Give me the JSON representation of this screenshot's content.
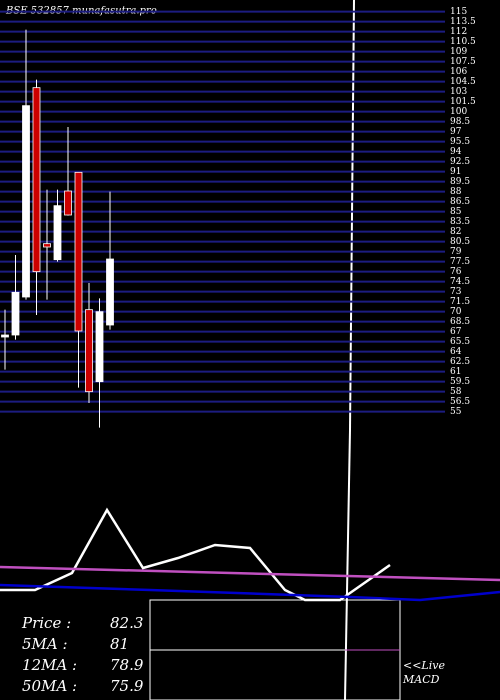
{
  "chart_data": [
    {
      "type": "candlestick",
      "title": "BSE 532857 munafasutra.pro",
      "ylim": [
        53,
        116
      ],
      "yticks": [
        55,
        56.5,
        58,
        59.5,
        61,
        62.5,
        64,
        65.5,
        67,
        68.5,
        70,
        71.5,
        73,
        74.5,
        76,
        77.5,
        79,
        80.5,
        82,
        83.5,
        85,
        86.5,
        88,
        89.5,
        91,
        92.5,
        94,
        95.5,
        97,
        98.5,
        100,
        101.5,
        103,
        104.5,
        106,
        107.5,
        109,
        110.5,
        112,
        113.5,
        115
      ],
      "grid": true,
      "grid_color": "#1c1c80",
      "up_color": "#ffffff",
      "down_color": "#cc0000",
      "open": [
        66.2,
        66.5,
        72.2,
        103.6,
        80.2,
        77.8,
        88.1,
        90.9,
        70.3,
        59.5,
        68.0
      ],
      "high": [
        70.3,
        78.5,
        112.3,
        104.8,
        88.3,
        88.3,
        97.7,
        90.9,
        74.3,
        72.0,
        88.0
      ],
      "low": [
        61.3,
        65.8,
        71.8,
        69.5,
        71.8,
        77.5,
        84.4,
        58.6,
        56.3,
        52.6,
        67.3
      ],
      "close": [
        66.5,
        72.9,
        100.9,
        76.0,
        79.7,
        85.9,
        84.5,
        67.1,
        58.0,
        70.0,
        77.9
      ],
      "indicators": [
        {
          "label": "Price   :",
          "value": 82.3
        },
        {
          "label": "5MA :",
          "value": 81
        },
        {
          "label": "12MA :",
          "value": 78.9
        },
        {
          "label": "50MA :",
          "value": 75.9
        }
      ]
    },
    {
      "type": "line",
      "ylim": [
        0,
        100
      ],
      "xlim": [
        0,
        500
      ],
      "annotation": "<<Live",
      "label": "MACD",
      "series": [
        {
          "name": "macd",
          "color": "#ffffff",
          "x": [
            0,
            35,
            72,
            107,
            143,
            178,
            215,
            250,
            285,
            305,
            340,
            390
          ],
          "values": [
            10,
            10,
            27,
            90,
            32,
            42,
            55,
            52,
            10,
            0,
            0,
            35
          ]
        },
        {
          "name": "signal",
          "color": "#c050c0",
          "x": [
            0,
            500
          ],
          "values": [
            33,
            20
          ]
        },
        {
          "name": "trend",
          "color": "#0000cc",
          "x": [
            0,
            150,
            350,
            420,
            500
          ],
          "values": [
            15,
            10,
            3,
            0,
            8
          ]
        }
      ]
    }
  ]
}
